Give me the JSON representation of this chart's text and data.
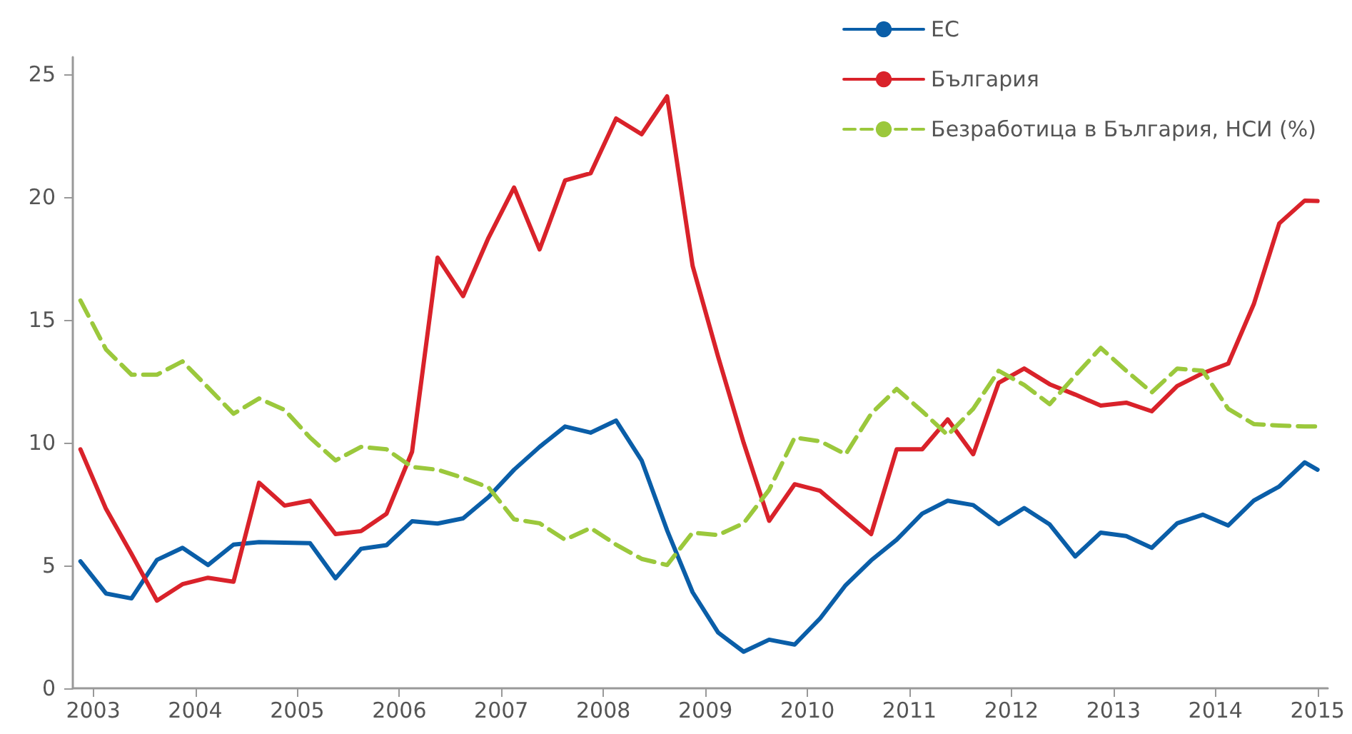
{
  "chart_data": {
    "type": "line",
    "legend": "top right",
    "grid": false,
    "marker": "none",
    "xlim": [
      2002.8,
      2015.1
    ],
    "xticks": [
      2003,
      2004,
      2005,
      2006,
      2007,
      2008,
      2009,
      2010,
      2011,
      2012,
      2013,
      2014,
      2015
    ],
    "ylim": [
      0,
      25.7
    ],
    "yticks": [
      0,
      5,
      10,
      15,
      20,
      25
    ],
    "x": [
      2002.875,
      2003.125,
      2003.375,
      2003.625,
      2003.875,
      2004.125,
      2004.375,
      2004.625,
      2004.875,
      2005.125,
      2005.375,
      2005.625,
      2005.875,
      2006.125,
      2006.375,
      2006.625,
      2006.875,
      2007.125,
      2007.375,
      2007.625,
      2007.875,
      2008.125,
      2008.375,
      2008.625,
      2008.875,
      2009.125,
      2009.375,
      2009.625,
      2009.875,
      2010.125,
      2010.375,
      2010.625,
      2010.875,
      2011.125,
      2011.375,
      2011.625,
      2011.875,
      2012.125,
      2012.375,
      2012.625,
      2012.875,
      2013.125,
      2013.375,
      2013.625,
      2013.875,
      2014.125,
      2014.375,
      2014.625,
      2014.875,
      2015.0
    ],
    "series": [
      {
        "name": "ЕС",
        "color": "#0a5ea8",
        "line_style": "solid",
        "values": [
          5.17,
          3.86,
          3.66,
          5.23,
          5.72,
          5.02,
          5.85,
          5.95,
          5.93,
          5.91,
          4.48,
          5.68,
          5.83,
          6.8,
          6.71,
          6.92,
          7.79,
          8.9,
          9.83,
          10.66,
          10.41,
          10.9,
          9.28,
          6.43,
          3.91,
          2.27,
          1.49,
          1.98,
          1.78,
          2.85,
          4.2,
          5.21,
          6.05,
          7.11,
          7.64,
          7.46,
          6.69,
          7.34,
          6.67,
          5.37,
          6.34,
          6.2,
          5.72,
          6.72,
          7.07,
          6.63,
          7.64,
          8.22,
          9.2,
          8.9
        ]
      },
      {
        "name": "България",
        "color": "#d9222a",
        "line_style": "solid",
        "values": [
          9.73,
          7.31,
          5.47,
          3.57,
          4.24,
          4.5,
          4.34,
          8.37,
          7.44,
          7.64,
          6.28,
          6.4,
          7.11,
          9.63,
          17.54,
          15.97,
          18.35,
          20.39,
          17.87,
          20.68,
          20.97,
          23.2,
          22.56,
          24.1,
          17.2,
          13.5,
          10.0,
          6.82,
          8.31,
          8.04,
          7.15,
          6.28,
          9.73,
          9.73,
          10.95,
          9.53,
          12.44,
          13.02,
          12.38,
          11.96,
          11.51,
          11.63,
          11.28,
          12.31,
          12.83,
          13.22,
          15.64,
          18.93,
          19.86,
          19.84
        ]
      },
      {
        "name": "Безработица в България, НСИ (%)",
        "color": "#9bc83c",
        "line_style": "dashed",
        "values": [
          15.79,
          13.8,
          12.77,
          12.77,
          13.31,
          12.25,
          11.18,
          11.8,
          11.34,
          10.21,
          9.28,
          9.83,
          9.73,
          9.01,
          8.9,
          8.57,
          8.18,
          6.88,
          6.72,
          6.05,
          6.53,
          5.85,
          5.27,
          5.02,
          6.34,
          6.24,
          6.72,
          8.08,
          10.21,
          10.06,
          9.53,
          11.18,
          12.19,
          11.28,
          10.31,
          11.38,
          12.93,
          12.35,
          11.57,
          12.73,
          13.86,
          12.93,
          12.05,
          13.02,
          12.93,
          11.38,
          10.76,
          10.7,
          10.66,
          10.66
        ]
      }
    ]
  }
}
